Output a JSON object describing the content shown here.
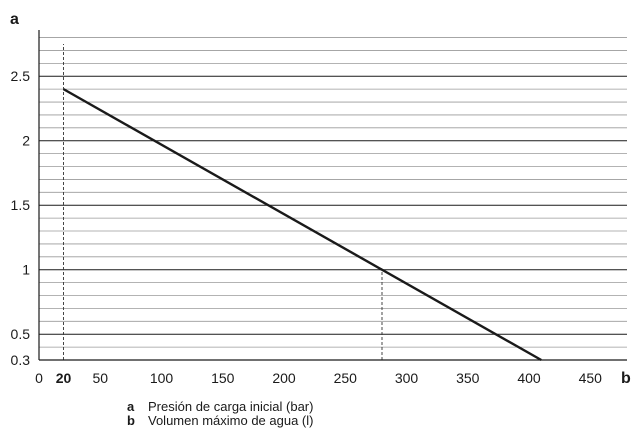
{
  "chart_data": {
    "type": "line",
    "xlabel": "b",
    "ylabel": "a",
    "xlim": [
      0,
      480
    ],
    "ylim": [
      0.3,
      2.75
    ],
    "x_ticks": [
      "0",
      "20",
      "50",
      "100",
      "150",
      "200",
      "250",
      "300",
      "350",
      "400",
      "450"
    ],
    "y_ticks": [
      "0.3",
      "0.5",
      "1",
      "1.5",
      "2",
      "2.5"
    ],
    "grid": true,
    "series": [
      {
        "x": [
          20,
          410
        ],
        "y": [
          2.4,
          0.3
        ]
      }
    ],
    "reference_lines": [
      {
        "orientation": "vertical",
        "x": 20,
        "y_from": 0.3,
        "y_to": 2.75,
        "style": "dashed"
      },
      {
        "orientation": "vertical",
        "x": 280,
        "y_from": 0.3,
        "y_to": 1,
        "style": "dashed"
      }
    ]
  },
  "legend": [
    {
      "key": "a",
      "text": "Presión de carga inicial (bar)"
    },
    {
      "key": "b",
      "text": "Volumen máximo de agua (l)"
    }
  ],
  "colors": {
    "line": "#1a1a1a",
    "major_grid": "#1a1a1a",
    "minor_grid": "#9a9a9a"
  }
}
